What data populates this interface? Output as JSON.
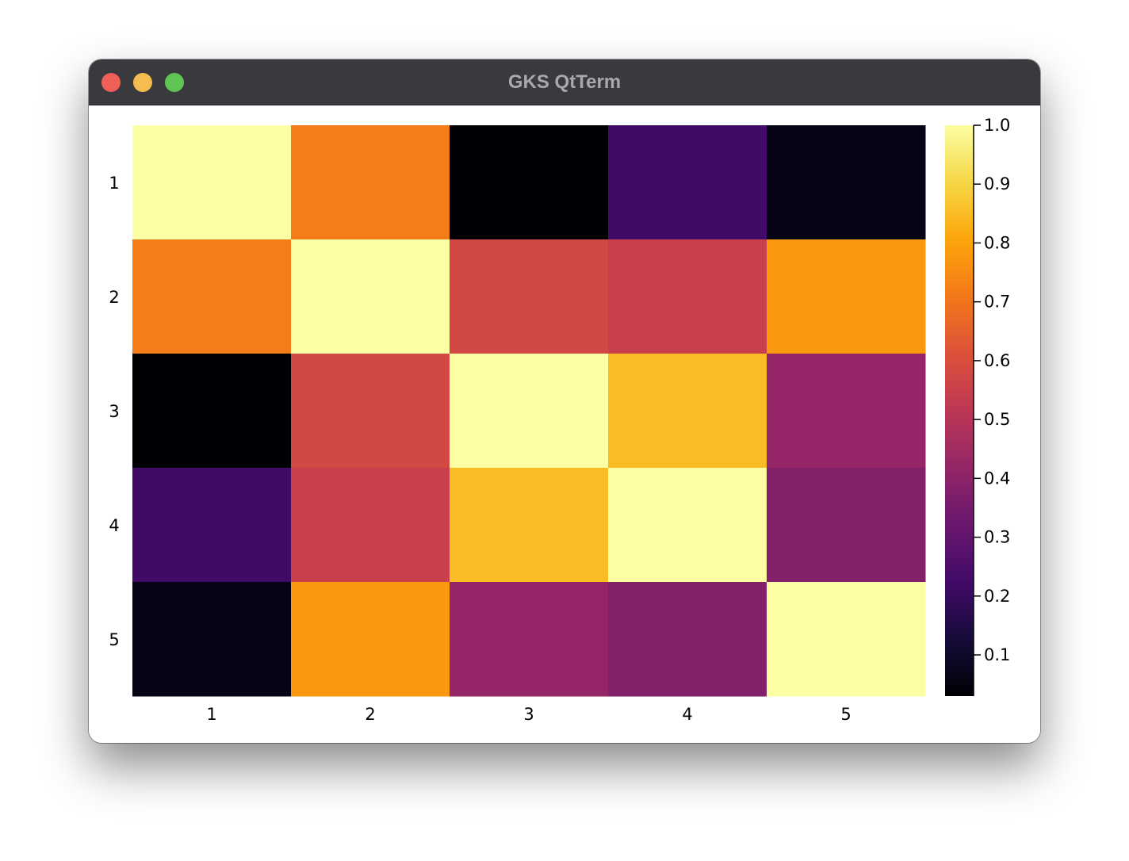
{
  "window": {
    "title": "GKS QtTerm"
  },
  "chart_data": {
    "type": "heatmap",
    "colormap": "inferno",
    "x_categories": [
      "1",
      "2",
      "3",
      "4",
      "5"
    ],
    "y_categories": [
      "1",
      "2",
      "3",
      "4",
      "5"
    ],
    "values": [
      [
        1.0,
        0.72,
        0.03,
        0.22,
        0.06
      ],
      [
        0.72,
        1.0,
        0.58,
        0.55,
        0.78
      ],
      [
        0.03,
        0.58,
        1.0,
        0.85,
        0.42
      ],
      [
        0.22,
        0.55,
        0.85,
        1.0,
        0.38
      ],
      [
        0.06,
        0.78,
        0.42,
        0.38,
        1.0
      ]
    ],
    "colorbar": {
      "range": [
        0.03,
        1.0
      ],
      "ticks": [
        0.1,
        0.2,
        0.3,
        0.4,
        0.5,
        0.6,
        0.7,
        0.8,
        0.9,
        1.0
      ],
      "tick_labels": [
        "0.1",
        "0.2",
        "0.3",
        "0.4",
        "0.5",
        "0.6",
        "0.7",
        "0.8",
        "0.9",
        "1.0"
      ]
    },
    "grid": false
  }
}
